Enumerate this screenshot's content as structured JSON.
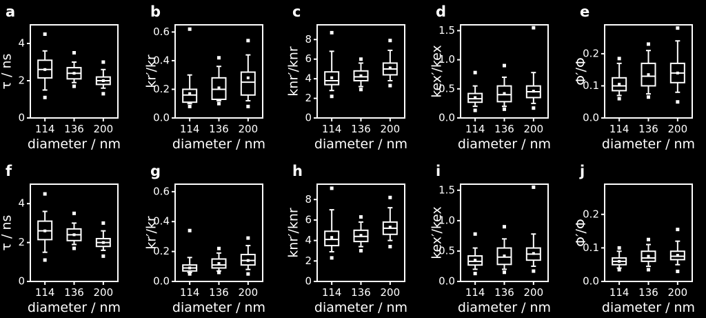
{
  "background": "#000000",
  "foreground": "#ffffff",
  "chart_data": [
    {
      "letter": "a",
      "type": "box",
      "ylabel": "τ / ns",
      "xlabel": "diameter / nm",
      "categories": [
        "114",
        "136",
        "200"
      ],
      "ylim": [
        0,
        5
      ],
      "yticks": [
        0,
        2,
        4
      ],
      "ytick_labels": [
        "0",
        "2",
        "4"
      ],
      "boxes": [
        {
          "whislo": 1.5,
          "q1": 2.15,
          "med": 2.6,
          "q3": 3.1,
          "whishi": 3.6,
          "mean": 2.6,
          "fliers": [
            1.1,
            4.5
          ]
        },
        {
          "whislo": 1.9,
          "q1": 2.1,
          "med": 2.4,
          "q3": 2.7,
          "whishi": 3.0,
          "mean": 2.4,
          "fliers": [
            1.7,
            3.5
          ]
        },
        {
          "whislo": 1.6,
          "q1": 1.8,
          "med": 2.0,
          "q3": 2.2,
          "whishi": 2.6,
          "mean": 2.0,
          "fliers": [
            1.3,
            3.0
          ]
        }
      ]
    },
    {
      "letter": "b",
      "type": "box",
      "ylabel": "kr′/kr",
      "xlabel": "diameter / nm",
      "categories": [
        "114",
        "136",
        "200"
      ],
      "ylim": [
        0,
        0.65
      ],
      "yticks": [
        0,
        0.2,
        0.4,
        0.6
      ],
      "ytick_labels": [
        "0.0",
        "0.2",
        "0.4",
        "0.6"
      ],
      "boxes": [
        {
          "whislo": 0.1,
          "q1": 0.11,
          "med": 0.16,
          "q3": 0.2,
          "whishi": 0.3,
          "mean": 0.17,
          "fliers": [
            0.08,
            0.62
          ]
        },
        {
          "whislo": 0.12,
          "q1": 0.13,
          "med": 0.2,
          "q3": 0.28,
          "whishi": 0.36,
          "mean": 0.21,
          "fliers": [
            0.1,
            0.42
          ]
        },
        {
          "whislo": 0.12,
          "q1": 0.16,
          "med": 0.25,
          "q3": 0.32,
          "whishi": 0.44,
          "mean": 0.28,
          "fliers": [
            0.08,
            0.54
          ]
        }
      ]
    },
    {
      "letter": "c",
      "type": "box",
      "ylabel": "knr′/knr",
      "xlabel": "diameter / nm",
      "categories": [
        "114",
        "136",
        "200"
      ],
      "ylim": [
        0,
        9.5
      ],
      "yticks": [
        0,
        2,
        4,
        6,
        8
      ],
      "ytick_labels": [
        "0",
        "2",
        "4",
        "6",
        "8"
      ],
      "boxes": [
        {
          "whislo": 2.8,
          "q1": 3.4,
          "med": 3.8,
          "q3": 4.7,
          "whishi": 6.8,
          "mean": 4.1,
          "fliers": [
            2.2,
            8.7
          ]
        },
        {
          "whislo": 3.2,
          "q1": 3.8,
          "med": 4.2,
          "q3": 4.8,
          "whishi": 5.6,
          "mean": 4.3,
          "fliers": [
            2.9,
            6.0
          ]
        },
        {
          "whislo": 3.8,
          "q1": 4.4,
          "med": 5.0,
          "q3": 5.6,
          "whishi": 6.9,
          "mean": 5.1,
          "fliers": [
            3.3,
            7.9
          ]
        }
      ]
    },
    {
      "letter": "d",
      "type": "box",
      "ylabel": "kex′/kex",
      "xlabel": "diameter / nm",
      "categories": [
        "114",
        "136",
        "200"
      ],
      "ylim": [
        0,
        1.6
      ],
      "yticks": [
        0,
        0.5,
        1.0,
        1.5
      ],
      "ytick_labels": [
        "0.0",
        "0.5",
        "1.0",
        "1.5"
      ],
      "boxes": [
        {
          "whislo": 0.2,
          "q1": 0.27,
          "med": 0.33,
          "q3": 0.42,
          "whishi": 0.55,
          "mean": 0.35,
          "fliers": [
            0.13,
            0.78
          ]
        },
        {
          "whislo": 0.2,
          "q1": 0.28,
          "med": 0.4,
          "q3": 0.55,
          "whishi": 0.7,
          "mean": 0.42,
          "fliers": [
            0.15,
            0.9
          ]
        },
        {
          "whislo": 0.25,
          "q1": 0.35,
          "med": 0.45,
          "q3": 0.55,
          "whishi": 0.78,
          "mean": 0.46,
          "fliers": [
            0.17,
            1.55
          ]
        }
      ]
    },
    {
      "letter": "e",
      "type": "box",
      "ylabel": "Φ′/Φ",
      "xlabel": "diameter / nm",
      "categories": [
        "114",
        "136",
        "200"
      ],
      "ylim": [
        0,
        0.29
      ],
      "yticks": [
        0,
        0.1,
        0.2
      ],
      "ytick_labels": [
        "0.0",
        "0.1",
        "0.2"
      ],
      "boxes": [
        {
          "whislo": 0.07,
          "q1": 0.085,
          "med": 0.1,
          "q3": 0.125,
          "whishi": 0.17,
          "mean": 0.105,
          "fliers": [
            0.06,
            0.185
          ]
        },
        {
          "whislo": 0.075,
          "q1": 0.1,
          "med": 0.13,
          "q3": 0.17,
          "whishi": 0.21,
          "mean": 0.135,
          "fliers": [
            0.065,
            0.23
          ]
        },
        {
          "whislo": 0.08,
          "q1": 0.11,
          "med": 0.14,
          "q3": 0.17,
          "whishi": 0.24,
          "mean": 0.14,
          "fliers": [
            0.05,
            0.28
          ]
        }
      ]
    },
    {
      "letter": "f",
      "type": "box",
      "ylabel": "τ / ns",
      "xlabel": "diameter / nm",
      "categories": [
        "114",
        "136",
        "200"
      ],
      "ylim": [
        0,
        5
      ],
      "yticks": [
        0,
        2,
        4
      ],
      "ytick_labels": [
        "0",
        "2",
        "4"
      ],
      "boxes": [
        {
          "whislo": 1.5,
          "q1": 2.15,
          "med": 2.6,
          "q3": 3.1,
          "whishi": 3.6,
          "mean": 2.6,
          "fliers": [
            1.1,
            4.5
          ]
        },
        {
          "whislo": 1.9,
          "q1": 2.1,
          "med": 2.4,
          "q3": 2.7,
          "whishi": 3.0,
          "mean": 2.4,
          "fliers": [
            1.7,
            3.5
          ]
        },
        {
          "whislo": 1.6,
          "q1": 1.8,
          "med": 2.0,
          "q3": 2.2,
          "whishi": 2.6,
          "mean": 2.0,
          "fliers": [
            1.3,
            3.0
          ]
        }
      ]
    },
    {
      "letter": "g",
      "type": "box",
      "ylabel": "kr′/kr",
      "xlabel": "diameter / nm",
      "categories": [
        "114",
        "136",
        "200"
      ],
      "ylim": [
        0,
        0.65
      ],
      "yticks": [
        0,
        0.2,
        0.4,
        0.6
      ],
      "ytick_labels": [
        "0.0",
        "0.2",
        "0.4",
        "0.6"
      ],
      "boxes": [
        {
          "whislo": 0.06,
          "q1": 0.07,
          "med": 0.09,
          "q3": 0.11,
          "whishi": 0.16,
          "mean": 0.09,
          "fliers": [
            0.05,
            0.34
          ]
        },
        {
          "whislo": 0.07,
          "q1": 0.09,
          "med": 0.11,
          "q3": 0.15,
          "whishi": 0.19,
          "mean": 0.12,
          "fliers": [
            0.06,
            0.22
          ]
        },
        {
          "whislo": 0.08,
          "q1": 0.11,
          "med": 0.14,
          "q3": 0.18,
          "whishi": 0.24,
          "mean": 0.14,
          "fliers": [
            0.05,
            0.29
          ]
        }
      ]
    },
    {
      "letter": "h",
      "type": "box",
      "ylabel": "knr′/knr",
      "xlabel": "diameter / nm",
      "categories": [
        "114",
        "136",
        "200"
      ],
      "ylim": [
        0,
        9.5
      ],
      "yticks": [
        0,
        2,
        4,
        6,
        8
      ],
      "ytick_labels": [
        "0",
        "2",
        "4",
        "6",
        "8"
      ],
      "boxes": [
        {
          "whislo": 2.9,
          "q1": 3.5,
          "med": 4.1,
          "q3": 4.9,
          "whishi": 7.0,
          "mean": 4.3,
          "fliers": [
            2.3,
            9.1
          ]
        },
        {
          "whislo": 3.4,
          "q1": 3.9,
          "med": 4.4,
          "q3": 5.0,
          "whishi": 5.8,
          "mean": 4.5,
          "fliers": [
            3.0,
            6.3
          ]
        },
        {
          "whislo": 4.0,
          "q1": 4.6,
          "med": 5.2,
          "q3": 5.8,
          "whishi": 7.2,
          "mean": 5.3,
          "fliers": [
            3.4,
            8.2
          ]
        }
      ]
    },
    {
      "letter": "i",
      "type": "box",
      "ylabel": "kex′/kex",
      "xlabel": "diameter / nm",
      "categories": [
        "114",
        "136",
        "200"
      ],
      "ylim": [
        0,
        1.6
      ],
      "yticks": [
        0,
        0.5,
        1.0,
        1.5
      ],
      "ytick_labels": [
        "0.0",
        "0.5",
        "1.0",
        "1.5"
      ],
      "boxes": [
        {
          "whislo": 0.2,
          "q1": 0.27,
          "med": 0.33,
          "q3": 0.42,
          "whishi": 0.55,
          "mean": 0.35,
          "fliers": [
            0.13,
            0.78
          ]
        },
        {
          "whislo": 0.2,
          "q1": 0.28,
          "med": 0.4,
          "q3": 0.55,
          "whishi": 0.7,
          "mean": 0.42,
          "fliers": [
            0.15,
            0.9
          ]
        },
        {
          "whislo": 0.25,
          "q1": 0.35,
          "med": 0.45,
          "q3": 0.55,
          "whishi": 0.78,
          "mean": 0.46,
          "fliers": [
            0.17,
            1.55
          ]
        }
      ]
    },
    {
      "letter": "j",
      "type": "box",
      "ylabel": "Φ′/Φ",
      "xlabel": "diameter / nm",
      "categories": [
        "114",
        "136",
        "200"
      ],
      "ylim": [
        0,
        0.29
      ],
      "yticks": [
        0,
        0.1,
        0.2
      ],
      "ytick_labels": [
        "0.0",
        "0.1",
        "0.2"
      ],
      "boxes": [
        {
          "whislo": 0.04,
          "q1": 0.05,
          "med": 0.06,
          "q3": 0.07,
          "whishi": 0.09,
          "mean": 0.06,
          "fliers": [
            0.035,
            0.1
          ]
        },
        {
          "whislo": 0.045,
          "q1": 0.06,
          "med": 0.07,
          "q3": 0.09,
          "whishi": 0.11,
          "mean": 0.075,
          "fliers": [
            0.035,
            0.125
          ]
        },
        {
          "whislo": 0.05,
          "q1": 0.065,
          "med": 0.075,
          "q3": 0.09,
          "whishi": 0.12,
          "mean": 0.078,
          "fliers": [
            0.03,
            0.155
          ]
        }
      ]
    }
  ]
}
